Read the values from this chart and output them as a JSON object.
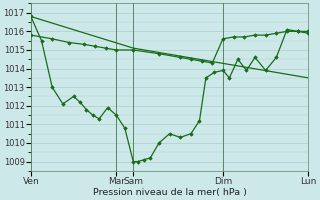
{
  "xlabel": "Pression niveau de la mer( hPa )",
  "bg_color": "#cde8e8",
  "grid_color": "#b0cccc",
  "line_color": "#1a6b1a",
  "ylim": [
    1008.5,
    1017.5
  ],
  "yticks": [
    1009,
    1010,
    1011,
    1012,
    1013,
    1014,
    1015,
    1016,
    1017
  ],
  "xlim": [
    0,
    13.0
  ],
  "day_x": [
    0,
    4.0,
    4.8,
    9.0,
    13.0
  ],
  "day_labels": [
    "Ven",
    "Mar",
    "Sam",
    "Dim",
    "Lun"
  ],
  "line1_x": [
    0,
    4.8,
    13.0
  ],
  "line1_y": [
    1016.8,
    1015.1,
    1013.5
  ],
  "line2_x": [
    0,
    1.0,
    1.8,
    2.5,
    3.0,
    3.5,
    4.0,
    4.8,
    6.0,
    7.0,
    7.5,
    8.0,
    8.5,
    9.0,
    9.5,
    10.0,
    10.5,
    11.0,
    11.5,
    12.0,
    12.5,
    13.0
  ],
  "line2_y": [
    1015.8,
    1015.6,
    1015.4,
    1015.3,
    1015.2,
    1015.1,
    1015.0,
    1015.0,
    1014.8,
    1014.6,
    1014.5,
    1014.4,
    1014.3,
    1015.6,
    1015.7,
    1015.7,
    1015.8,
    1015.8,
    1015.9,
    1016.0,
    1016.0,
    1016.0
  ],
  "line3_x": [
    0,
    0.5,
    1.0,
    1.5,
    2.0,
    2.3,
    2.6,
    2.9,
    3.2,
    3.6,
    4.0,
    4.4,
    4.8,
    5.0,
    5.3,
    5.6,
    6.0,
    6.5,
    7.0,
    7.5,
    7.9,
    8.2,
    8.6,
    9.0,
    9.3,
    9.7,
    10.1,
    10.5,
    11.0,
    11.5,
    12.0,
    12.5,
    13.0
  ],
  "line3_y": [
    1016.8,
    1015.5,
    1013.0,
    1012.1,
    1012.5,
    1012.2,
    1011.8,
    1011.5,
    1011.3,
    1011.9,
    1011.5,
    1010.8,
    1009.0,
    1009.0,
    1009.1,
    1009.2,
    1010.0,
    1010.5,
    1010.3,
    1010.5,
    1011.2,
    1013.5,
    1013.8,
    1013.9,
    1013.5,
    1014.5,
    1013.9,
    1014.6,
    1013.9,
    1014.6,
    1016.1,
    1016.0,
    1015.9
  ]
}
